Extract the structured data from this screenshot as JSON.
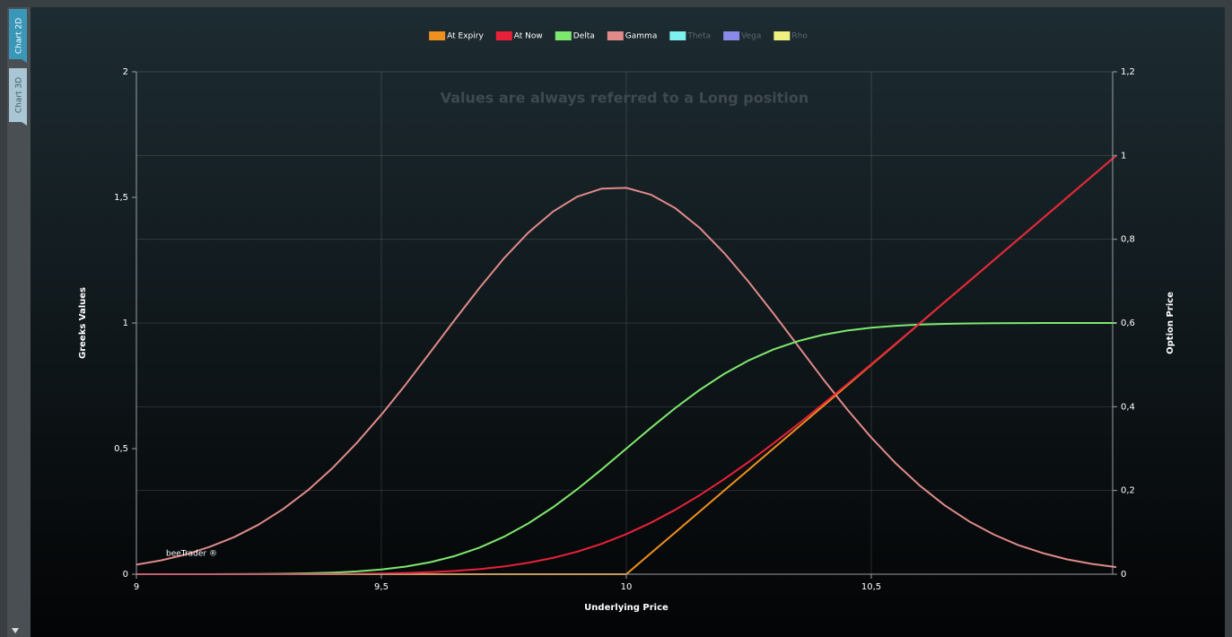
{
  "tabs": [
    "Chart 2D",
    "Chart 3D"
  ],
  "chart_data": {
    "type": "line",
    "annotation": "Values are always referred to a Long position",
    "watermark": "beeTrader ®",
    "x_label": "Underlying Price",
    "y_label": "Greeks Values",
    "y2_label": "Option Price",
    "xlim": [
      9,
      11
    ],
    "xticks": [
      9,
      {
        "value": 9.5,
        "label": "9,5"
      },
      10,
      {
        "value": 10.5,
        "label": "10,5"
      }
    ],
    "ylim": [
      0,
      2
    ],
    "yticks": [
      0,
      {
        "value": 0.5,
        "label": "0,5"
      },
      1,
      {
        "value": 1.5,
        "label": "1,5"
      },
      2
    ],
    "y2lim": [
      0,
      1.2
    ],
    "y2ticks": [
      0,
      {
        "value": 0.2,
        "label": "0,2"
      },
      {
        "value": 0.4,
        "label": "0,4"
      },
      {
        "value": 0.6,
        "label": "0,6"
      },
      {
        "value": 0.8,
        "label": "0,8"
      },
      1,
      {
        "value": 1.2,
        "label": "1,2"
      }
    ],
    "grid": true,
    "legend": "top",
    "x": [
      9,
      9.05,
      9.1,
      9.15,
      9.2,
      9.25,
      9.3,
      9.35,
      9.4,
      9.45,
      9.5,
      9.55,
      9.6,
      9.65,
      9.7,
      9.75,
      9.8,
      9.85,
      9.9,
      9.95,
      10,
      10.05,
      10.1,
      10.15,
      10.2,
      10.25,
      10.3,
      10.35,
      10.4,
      10.45,
      10.5,
      10.55,
      10.6,
      10.65,
      10.7,
      10.75,
      10.8,
      10.85,
      10.9,
      10.95,
      11
    ],
    "series": [
      {
        "name": "At Expiry",
        "color": "#f0901e",
        "axis": "y2",
        "visible": true,
        "values": [
          0,
          0,
          0,
          0,
          0,
          0,
          0,
          0,
          0,
          0,
          0,
          0,
          0,
          0,
          0,
          0,
          0,
          0,
          0,
          0,
          0,
          0.05,
          0.1,
          0.15,
          0.2,
          0.25,
          0.3,
          0.35,
          0.4,
          0.45,
          0.5,
          0.55,
          0.6,
          0.65,
          0.7,
          0.75,
          0.8,
          0.85,
          0.9,
          0.95,
          1
        ]
      },
      {
        "name": "At Now",
        "color": "#e8213a",
        "axis": "y2",
        "visible": true,
        "values": [
          0,
          0,
          0,
          1e-05,
          3e-05,
          6e-05,
          0.00012,
          0.00025,
          0.00048,
          0.00092,
          0.00164,
          0.00286,
          0.00476,
          0.00773,
          0.01214,
          0.01836,
          0.02727,
          0.03887,
          0.05385,
          0.07282,
          0.0957,
          0.1228,
          0.1539,
          0.1889,
          0.2273,
          0.2684,
          0.3121,
          0.3577,
          0.4048,
          0.4529,
          0.5016,
          0.5509,
          0.6005,
          0.6502,
          0.7001,
          0.75,
          0.8,
          0.85,
          0.9,
          0.95,
          1
        ]
      },
      {
        "name": "Delta",
        "color": "#7ee86e",
        "visible": true,
        "values": [
          0,
          0,
          0.0001,
          0.0002,
          0.0004,
          0.0009,
          0.0018,
          0.0034,
          0.0062,
          0.011,
          0.0186,
          0.0304,
          0.0478,
          0.0724,
          0.1056,
          0.1488,
          0.2023,
          0.266,
          0.3385,
          0.4176,
          0.5,
          0.5824,
          0.6615,
          0.734,
          0.7977,
          0.8512,
          0.8944,
          0.9276,
          0.9522,
          0.9696,
          0.9814,
          0.989,
          0.9938,
          0.9966,
          0.9982,
          0.9991,
          0.9996,
          0.9998,
          0.9999,
          1,
          1
        ]
      },
      {
        "name": "Gamma",
        "color": "#e08a8a",
        "visible": true,
        "values": [
          0.038,
          0.055,
          0.078,
          0.109,
          0.148,
          0.198,
          0.26,
          0.334,
          0.422,
          0.523,
          0.635,
          0.756,
          0.884,
          1.013,
          1.139,
          1.257,
          1.36,
          1.443,
          1.503,
          1.535,
          1.538,
          1.511,
          1.457,
          1.378,
          1.278,
          1.163,
          1.039,
          0.91,
          0.781,
          0.658,
          0.544,
          0.441,
          0.351,
          0.274,
          0.21,
          0.158,
          0.116,
          0.084,
          0.059,
          0.041,
          0.028
        ]
      },
      {
        "name": "Theta",
        "color": "#7ff0f0",
        "visible": false
      },
      {
        "name": "Vega",
        "color": "#8a8ae8",
        "visible": false
      },
      {
        "name": "Rho",
        "color": "#f0f080",
        "visible": false
      }
    ]
  }
}
